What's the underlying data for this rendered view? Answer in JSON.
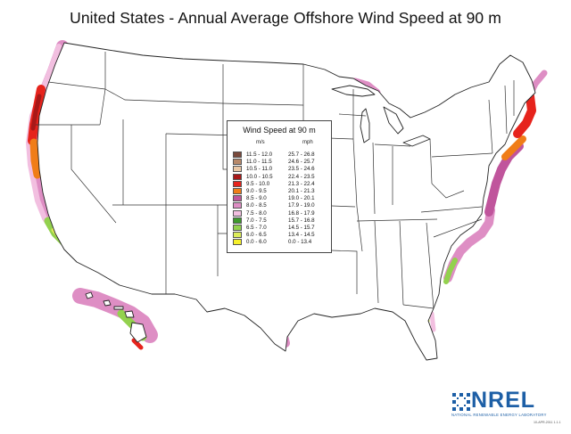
{
  "title": "United States - Annual Average Offshore Wind Speed at 90 m",
  "legend": {
    "title": "Wind Speed at 90 m",
    "unit_ms": "m/s",
    "unit_mph": "mph",
    "classes": [
      {
        "ms": "11.5 - 12.0",
        "mph": "25.7 - 26.8",
        "color": "#7a4a3c"
      },
      {
        "ms": "11.0 - 11.5",
        "mph": "24.6 - 25.7",
        "color": "#b8896a"
      },
      {
        "ms": "10.5 - 11.0",
        "mph": "23.5 - 24.6",
        "color": "#ebc8a6"
      },
      {
        "ms": "10.0 - 10.5",
        "mph": "22.4 - 23.5",
        "color": "#a81818"
      },
      {
        "ms": "9.5 - 10.0",
        "mph": "21.3 - 22.4",
        "color": "#e6231c"
      },
      {
        "ms": "9.0 - 9.5",
        "mph": "20.1 - 21.3",
        "color": "#f07d18"
      },
      {
        "ms": "8.5 - 9.0",
        "mph": "19.0 - 20.1",
        "color": "#c0559c"
      },
      {
        "ms": "8.0 - 8.5",
        "mph": "17.9 - 19.0",
        "color": "#de8ec4"
      },
      {
        "ms": "7.5 - 8.0",
        "mph": "16.8 - 17.9",
        "color": "#f2bfe0"
      },
      {
        "ms": "7.0 - 7.5",
        "mph": "15.7 - 16.8",
        "color": "#3e9a2c"
      },
      {
        "ms": "6.5 - 7.0",
        "mph": "14.5 - 15.7",
        "color": "#93d14e"
      },
      {
        "ms": "6.0 - 6.5",
        "mph": "13.4 - 14.5",
        "color": "#dcec5a"
      },
      {
        "ms": "0.0 - 6.0",
        "mph": "0.0 - 13.4",
        "color": "#f6f02c"
      }
    ]
  },
  "logo": {
    "word": "NREL",
    "subtitle": "NATIONAL RENEWABLE ENERGY LABORATORY",
    "code": "10-APR-2011 1.1.1"
  }
}
